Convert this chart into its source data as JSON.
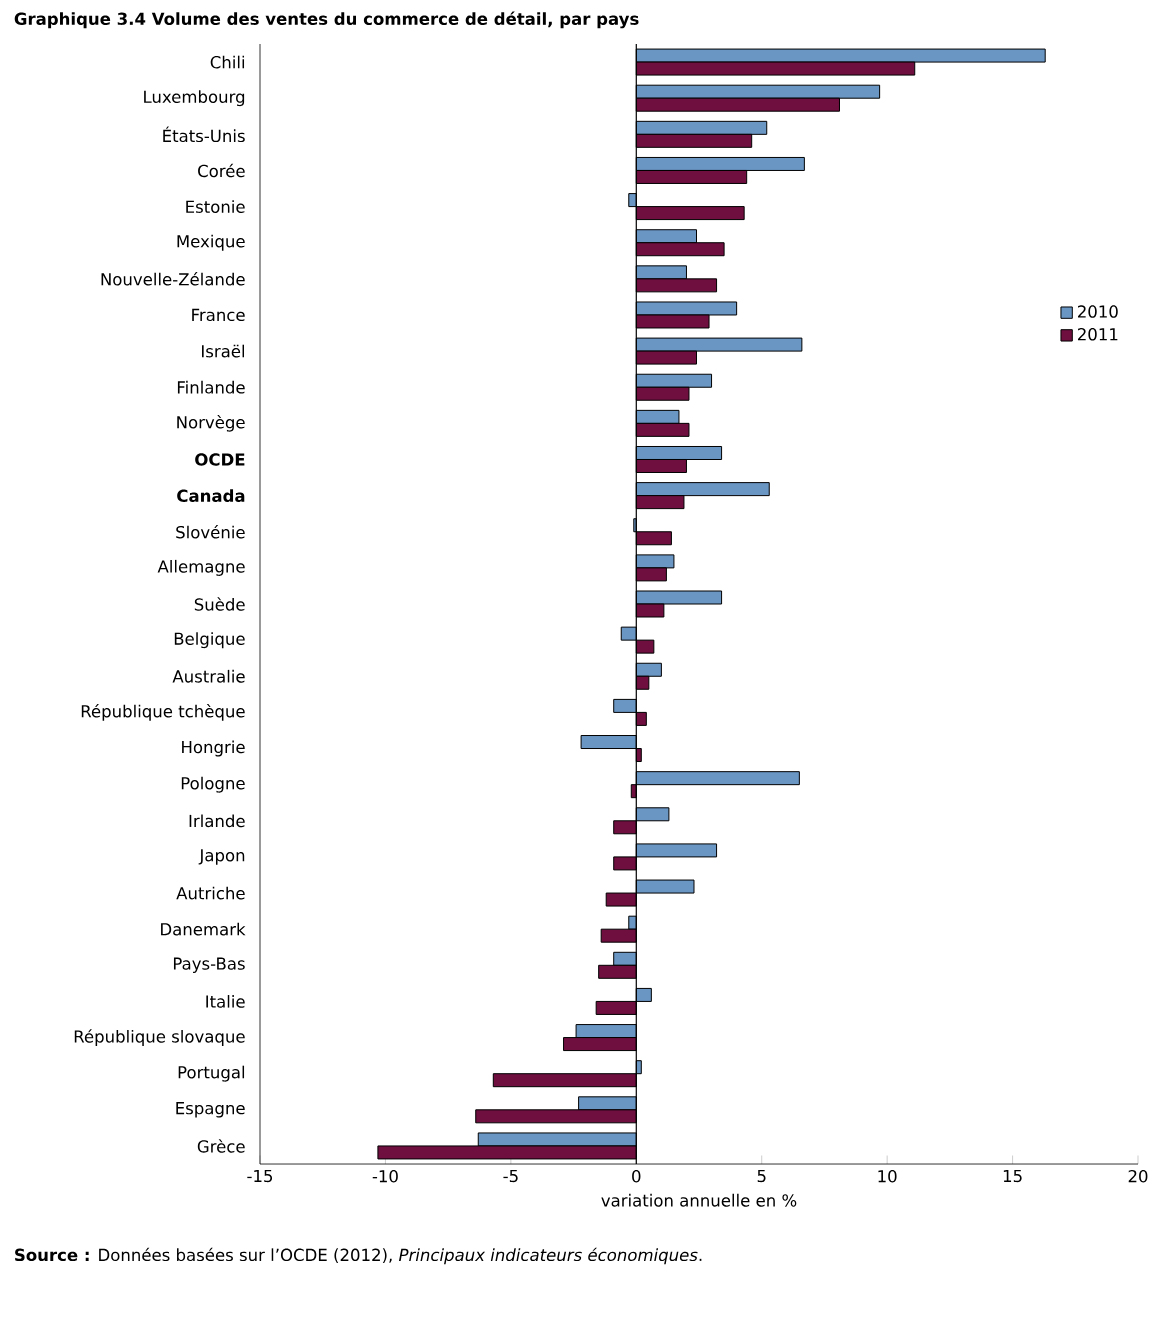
{
  "chart_data": {
    "type": "bar",
    "orientation": "horizontal",
    "title": "Graphique 3.4  Volume des ventes du commerce de détail, par pays",
    "xlabel": "variation annuelle en %",
    "annotations": [
      "**Source :** Données basées sur l’OCDE (2012), *Principaux indicateurs économiques*."
    ],
    "categories": [
      "Chili",
      "Luxembourg",
      "États-Unis",
      "Corée",
      "Estonie",
      "Mexique",
      "Nouvelle-Zélande",
      "France",
      "Israël",
      "Finlande",
      "Norvège",
      "**OCDE**",
      "**Canada**",
      "Slovénie",
      "Allemagne",
      "Suède",
      "Belgique",
      "Australie",
      "République tchèque",
      "Hongrie",
      "Pologne",
      "Irlande",
      "Japon",
      "Autriche",
      "Danemark",
      "Pays-Bas",
      "Italie",
      "République slovaque",
      "Portugal",
      "Espagne",
      "Grèce"
    ],
    "series": [
      {
        "name": "2010",
        "color": "#6a96c4",
        "values": [
          16.3,
          9.7,
          5.2,
          6.7,
          -0.3,
          2.4,
          2.0,
          4.0,
          6.6,
          3.0,
          1.7,
          3.4,
          5.3,
          -0.1,
          1.5,
          3.4,
          -0.6,
          1.0,
          -0.9,
          -2.2,
          6.5,
          1.3,
          3.2,
          2.3,
          -0.3,
          -0.9,
          0.6,
          -2.4,
          0.2,
          -2.3,
          -6.3
        ]
      },
      {
        "name": "2011",
        "color": "#6e0f3f",
        "values": [
          11.1,
          8.1,
          4.6,
          4.4,
          4.3,
          3.5,
          3.2,
          2.9,
          2.4,
          2.1,
          2.1,
          2.0,
          1.9,
          1.4,
          1.2,
          1.1,
          0.7,
          0.5,
          0.4,
          0.2,
          -0.2,
          -0.9,
          -0.9,
          -1.2,
          -1.4,
          -1.5,
          -1.6,
          -2.9,
          -5.7,
          -6.4,
          -10.3
        ]
      }
    ],
    "xlim": [
      -15,
      20
    ],
    "xticks": [
      -15,
      -10,
      -5,
      0,
      5,
      10,
      15,
      20
    ],
    "ref_lines": [
      {
        "axis": "x",
        "value": 0,
        "color": "#000000"
      }
    ],
    "legend": "right",
    "grid": false
  }
}
